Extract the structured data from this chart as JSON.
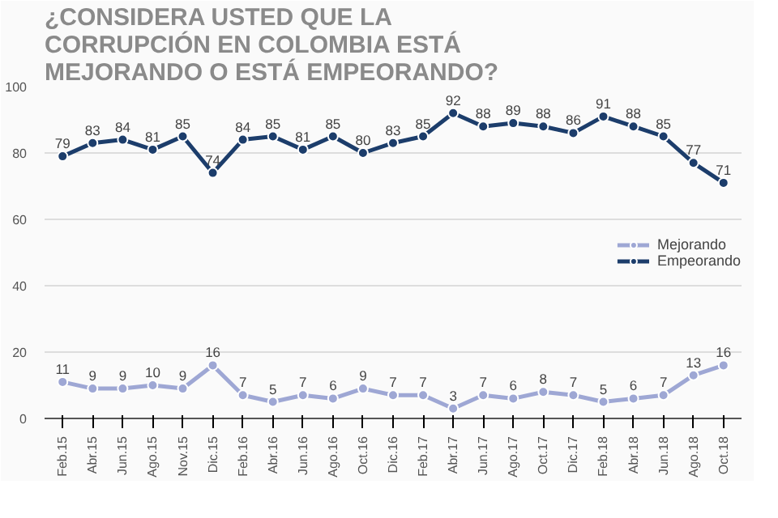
{
  "chart_data": {
    "type": "line",
    "title": "¿CONSIDERA USTED QUE LA CORRUPCIÓN EN COLOMBIA ESTÁ MEJORANDO O ESTÁ EMPEORANDO?",
    "categories": [
      "Feb.15",
      "Abr.15",
      "Jun.15",
      "Ago.15",
      "Nov.15",
      "Dic.15",
      "Feb.16",
      "Abr.16",
      "Jun.16",
      "Ago.16",
      "Oct.16",
      "Dic.16",
      "Feb.17",
      "Abr.17",
      "Jun.17",
      "Ago.17",
      "Oct.17",
      "Dic.17",
      "Feb.18",
      "Abr.18",
      "Jun.18",
      "Ago.18",
      "Oct.18"
    ],
    "series": [
      {
        "name": "Mejorando",
        "color": "#9ea7d4",
        "values": [
          11,
          9,
          9,
          10,
          9,
          16,
          7,
          5,
          7,
          6,
          9,
          7,
          7,
          3,
          7,
          6,
          8,
          7,
          5,
          6,
          7,
          13,
          16
        ]
      },
      {
        "name": "Empeorando",
        "color": "#1c3d6b",
        "values": [
          79,
          83,
          84,
          81,
          85,
          74,
          84,
          85,
          81,
          85,
          80,
          83,
          85,
          92,
          88,
          89,
          88,
          86,
          91,
          88,
          85,
          77,
          71
        ]
      }
    ],
    "ylim": [
      0,
      100
    ],
    "yticks": [
      0,
      20,
      40,
      60,
      80,
      100
    ],
    "grid": "y",
    "legend": "right",
    "marker": "circle",
    "line_style": "solid",
    "data_labels": true
  }
}
